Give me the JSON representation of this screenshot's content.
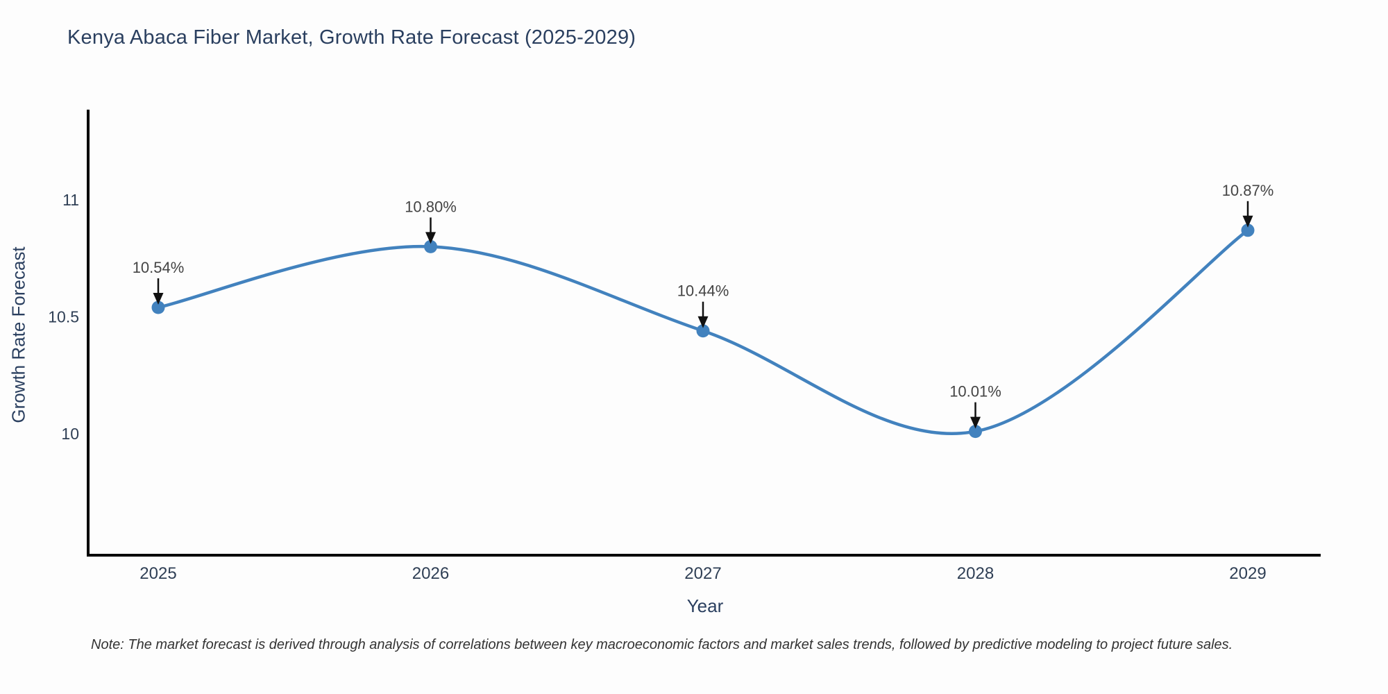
{
  "title": "Kenya Abaca Fiber Market, Growth Rate Forecast (2025-2029)",
  "note": "Note: The market forecast is derived through analysis of correlations between key macroeconomic factors and market sales trends, followed by predictive modeling to project future sales.",
  "colors": {
    "line": "#4282be",
    "marker": "#4282be",
    "axis": "#000000",
    "title_text": "#2a3f5f",
    "axis_title_text": "#2a3f5f",
    "tick_text": "#2f3f55",
    "annotation_text": "#444444",
    "arrow": "#111111",
    "note_text": "#333333",
    "background": "#fdfdfd"
  },
  "chart_data": {
    "type": "line",
    "title": "Kenya Abaca Fiber Market, Growth Rate Forecast (2025-2029)",
    "xlabel": "Year",
    "ylabel": "Growth Rate Forecast",
    "x": [
      2025,
      2026,
      2027,
      2028,
      2029
    ],
    "values": [
      10.54,
      10.8,
      10.44,
      10.01,
      10.87
    ],
    "point_labels": [
      "10.54%",
      "10.80%",
      "10.44%",
      "10.01%",
      "10.87%"
    ],
    "xtick_labels": [
      "2025",
      "2026",
      "2027",
      "2028",
      "2029"
    ],
    "yticks": [
      10,
      10.5,
      11
    ],
    "ytick_labels": [
      "10",
      "10.5",
      "11"
    ],
    "xlim": [
      2024.74,
      2029.27
    ],
    "ylim": [
      9.48,
      11.38
    ],
    "grid": false,
    "legend": false,
    "line_shape": "spline",
    "markers": true,
    "annotations_arrows": true
  }
}
